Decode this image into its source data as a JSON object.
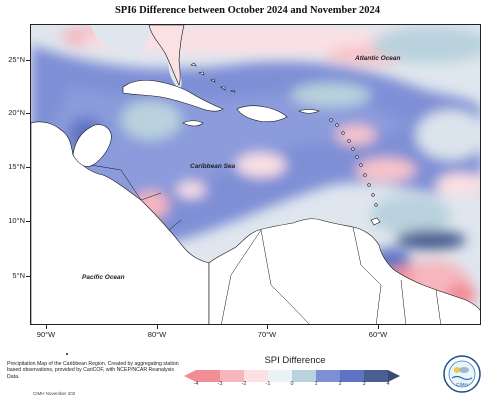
{
  "title": "SPI6 Difference between October 2024 and November 2024",
  "map": {
    "lat_labels": [
      "25°N",
      "20°N",
      "15°N",
      "10°N",
      "5°N"
    ],
    "lon_labels": [
      "90°W",
      "80°W",
      "70°W",
      "60°W"
    ],
    "ocean_labels": {
      "atlantic": "Atlantic Ocean",
      "caribbean": "Caribbean Sea",
      "pacific": "Pacific Ocean"
    },
    "colors": {
      "land": "#ffffff",
      "coast": "#111111",
      "very_dry": "#f28c95",
      "dry": "#f7b6bd",
      "slightly_dry": "#fbe0e4",
      "neutral": "#dfe6ee",
      "slightly_wet": "#b9d2dd",
      "wet": "#7f8fd6",
      "very_wet": "#5e74c3",
      "extreme_wet": "#4a5e8f"
    }
  },
  "legend": {
    "title": "SPI Difference",
    "ticks": [
      "-4",
      "-3",
      "-2",
      "-1",
      "0",
      "1",
      "2",
      "3",
      "4"
    ],
    "colors": [
      "#f28c95",
      "#f7b6bd",
      "#fbe0e4",
      "#eaf2f6",
      "#b9d2dd",
      "#7f8fd6",
      "#5e74c3",
      "#4a5e8f"
    ]
  },
  "notes": {
    "description": "Precipitation Map of the Caribbean Region. Created by aggregating station based observations, provided by CariCOF, with NCEP/NCAR Reanalysis Data.",
    "credit": "CIMH November 202"
  },
  "logo": {
    "name": "CIMH",
    "text": "CIMH"
  }
}
